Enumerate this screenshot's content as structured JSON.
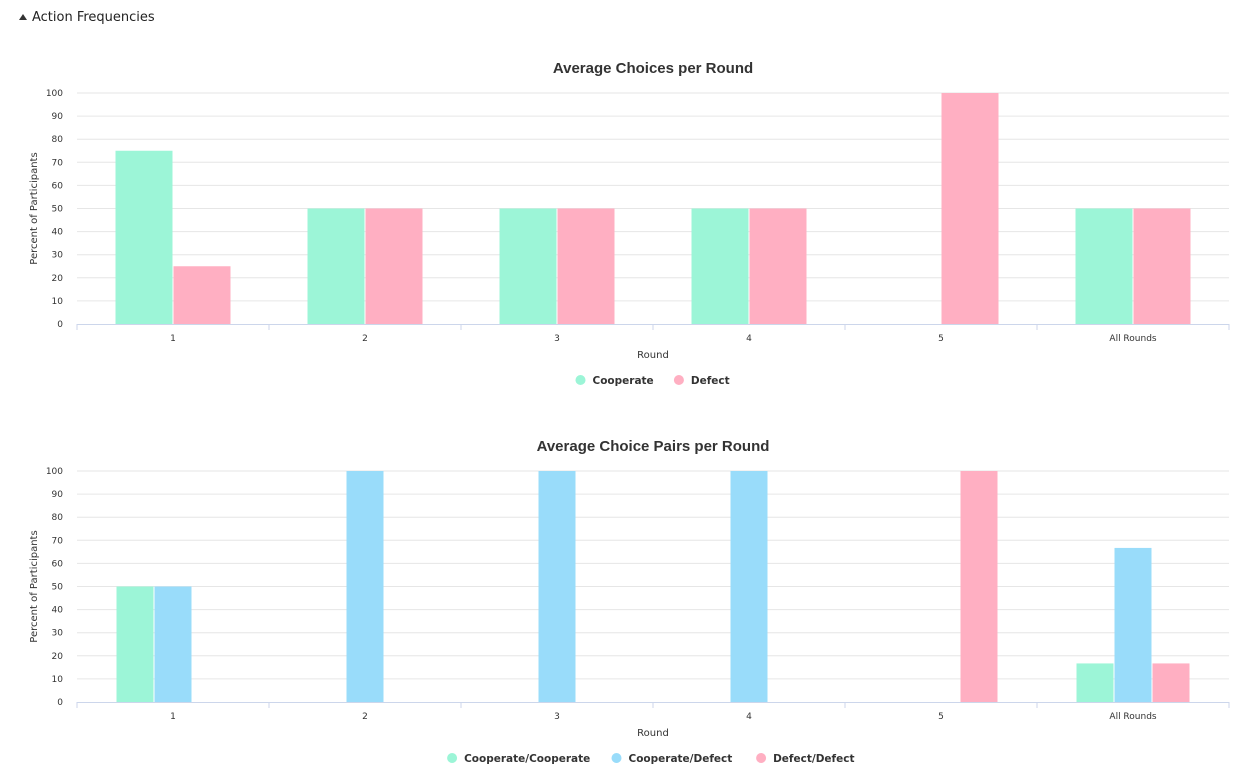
{
  "section": {
    "title": "Action Frequencies",
    "expanded": true
  },
  "chart_data": [
    {
      "type": "bar",
      "title": "Average Choices per Round",
      "xlabel": "Round",
      "ylabel": "Percent of Participants",
      "ylim": [
        0,
        100
      ],
      "yticks": [
        0,
        10,
        20,
        30,
        40,
        50,
        60,
        70,
        80,
        90,
        100
      ],
      "categories": [
        "1",
        "2",
        "3",
        "4",
        "5",
        "All Rounds"
      ],
      "series": [
        {
          "name": "Cooperate",
          "color": "#9cf5d7",
          "values": [
            75,
            50,
            50,
            50,
            0,
            50
          ]
        },
        {
          "name": "Defect",
          "color": "#ffafc2",
          "values": [
            25,
            50,
            50,
            50,
            100,
            50
          ]
        }
      ],
      "grid": true,
      "legend": "bottom-center"
    },
    {
      "type": "bar",
      "title": "Average Choice Pairs per Round",
      "xlabel": "Round",
      "ylabel": "Percent of Participants",
      "ylim": [
        0,
        100
      ],
      "yticks": [
        0,
        10,
        20,
        30,
        40,
        50,
        60,
        70,
        80,
        90,
        100
      ],
      "categories": [
        "1",
        "2",
        "3",
        "4",
        "5",
        "All Rounds"
      ],
      "series": [
        {
          "name": "Cooperate/Cooperate",
          "color": "#9cf5d7",
          "values": [
            50,
            0,
            0,
            0,
            0,
            16.7
          ]
        },
        {
          "name": "Cooperate/Defect",
          "color": "#99dcfa",
          "values": [
            50,
            100,
            100,
            100,
            0,
            66.7
          ]
        },
        {
          "name": "Defect/Defect",
          "color": "#ffafc2",
          "values": [
            0,
            0,
            0,
            0,
            100,
            16.7
          ]
        }
      ],
      "grid": true,
      "legend": "bottom-center"
    }
  ]
}
